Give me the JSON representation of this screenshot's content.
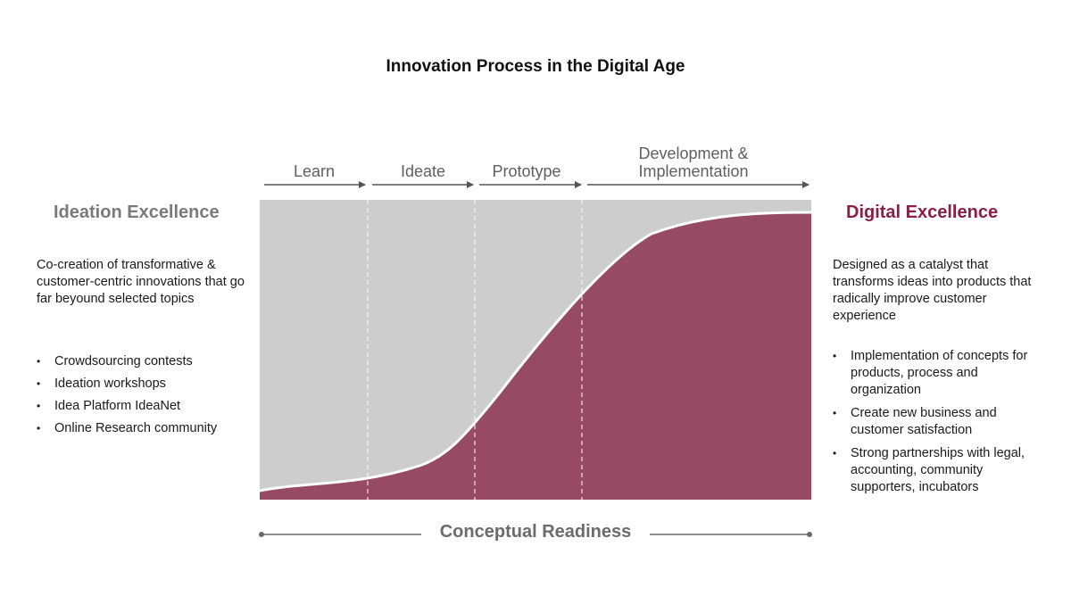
{
  "title": "Innovation Process in the Digital Age",
  "stages": [
    {
      "label": "Learn"
    },
    {
      "label": "Ideate"
    },
    {
      "label": "Prototype"
    },
    {
      "label": "Development & Implementation"
    }
  ],
  "left_panel": {
    "heading": "Ideation Excellence",
    "description": "Co-creation of transformative & customer-centric innovations that go far beyound selected topics",
    "bullets": [
      "Crowdsourcing contests",
      "Ideation workshops",
      "Idea Platform IdeaNet",
      "Online Research community"
    ]
  },
  "right_panel": {
    "heading": "Digital Excellence",
    "description": "Designed as a catalyst that transforms ideas into products that radically improve customer experience",
    "bullets": [
      "Implementation of concepts for products, process and organization",
      "Create new business and customer satisfaction",
      "Strong partnerships with legal, accounting, community supporters, incubators"
    ]
  },
  "x_axis_label": "Conceptual Readiness",
  "colors": {
    "gray_area": "#cdcdcd",
    "maroon_area": "#974a63",
    "accent": "#8b1e45",
    "muted_heading": "#7a7a7a"
  }
}
